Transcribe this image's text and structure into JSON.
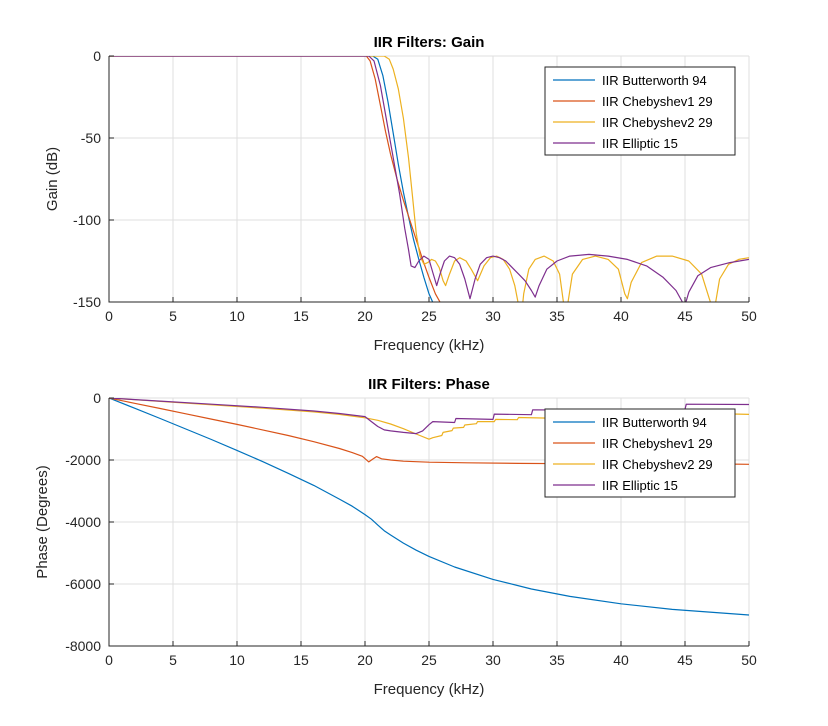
{
  "chart_data": [
    {
      "type": "line",
      "title": "IIR Filters: Gain",
      "xlabel": "Frequency (kHz)",
      "ylabel": "Gain (dB)",
      "xlim": [
        0,
        50
      ],
      "ylim": [
        -150,
        0
      ],
      "xticks": [
        0,
        5,
        10,
        15,
        20,
        25,
        30,
        35,
        40,
        45,
        50
      ],
      "yticks": [
        0,
        -50,
        -100,
        -150
      ],
      "grid": true,
      "legend_position": "top-right",
      "series": [
        {
          "name": "IIR Butterworth 94",
          "color": "#0072bd",
          "x": [
            0,
            20.6,
            21.0,
            21.4,
            21.8,
            22.2,
            22.6,
            23.0,
            23.4,
            23.8,
            24.2,
            24.6,
            25.0,
            25.4
          ],
          "y": [
            0,
            0,
            -2,
            -12,
            -28,
            -47,
            -66,
            -83,
            -98,
            -112,
            -124,
            -135,
            -145,
            -152
          ]
        },
        {
          "name": "IIR Chebyshev1 29",
          "color": "#d95319",
          "x": [
            0,
            20.1,
            20.4,
            20.8,
            21.2,
            21.6,
            22.0,
            22.5,
            23.0,
            23.5,
            24.0,
            24.5,
            25.0,
            25.5,
            26.0
          ],
          "y": [
            0,
            0,
            -3,
            -14,
            -30,
            -46,
            -60,
            -75,
            -88,
            -100,
            -112,
            -124,
            -135,
            -145,
            -152
          ]
        },
        {
          "name": "IIR Chebyshev2 29",
          "color": "#edb120",
          "x": [
            0,
            21.5,
            21.9,
            22.2,
            22.6,
            23.0,
            23.4,
            23.7,
            24.0,
            24.3,
            24.6,
            24.9,
            25.2,
            25.5,
            25.8,
            26.1,
            26.3,
            26.6,
            27.0,
            27.4,
            27.9,
            28.3,
            28.8,
            29.3,
            29.8,
            30.3,
            30.8,
            31.3,
            31.7,
            32.0,
            32.2,
            32.4,
            32.8,
            33.3,
            34.0,
            34.7,
            35.2,
            35.5,
            35.7,
            36.2,
            37.0,
            38.0,
            39.0,
            39.8,
            40.3,
            40.5,
            40.8,
            41.6,
            42.8,
            44.0,
            45.3,
            46.3,
            46.9,
            47.2,
            47.4,
            47.7,
            48.4,
            49.2,
            50.0
          ],
          "y": [
            0,
            0,
            -2,
            -8,
            -20,
            -38,
            -62,
            -85,
            -108,
            -122,
            -127,
            -126,
            -124,
            -125,
            -129,
            -137,
            -140,
            -133,
            -125,
            -123,
            -125,
            -130,
            -137,
            -128,
            -123,
            -122,
            -124,
            -130,
            -140,
            -152,
            -160,
            -145,
            -130,
            -124,
            -122,
            -125,
            -133,
            -150,
            -158,
            -133,
            -124,
            -122,
            -124,
            -130,
            -145,
            -148,
            -138,
            -126,
            -122,
            -122,
            -125,
            -133,
            -148,
            -155,
            -150,
            -136,
            -127,
            -124,
            -123
          ]
        },
        {
          "name": "IIR Elliptic 15",
          "color": "#7e2f8e",
          "x": [
            0,
            20.3,
            20.7,
            21.2,
            21.7,
            22.2,
            22.7,
            23.1,
            23.4,
            23.6,
            23.9,
            24.2,
            24.6,
            25.0,
            25.3,
            25.6,
            25.9,
            26.2,
            26.6,
            27.0,
            27.4,
            27.8,
            28.2,
            28.6,
            29.0,
            29.5,
            30.0,
            30.5,
            31.0,
            31.5,
            32.0,
            32.5,
            33.0,
            33.3,
            33.6,
            34.2,
            35.0,
            36.0,
            37.5,
            39.0,
            40.5,
            42.0,
            43.3,
            44.3,
            44.8,
            45.0,
            45.3,
            46.0,
            47.0,
            48.5,
            50.0
          ],
          "y": [
            0,
            0,
            -3,
            -18,
            -40,
            -62,
            -84,
            -105,
            -118,
            -128,
            -129,
            -125,
            -122,
            -124,
            -132,
            -140,
            -132,
            -125,
            -122,
            -123,
            -127,
            -136,
            -148,
            -136,
            -127,
            -123,
            -122,
            -123,
            -125,
            -129,
            -133,
            -137,
            -143,
            -147,
            -140,
            -130,
            -125,
            -122,
            -121,
            -122,
            -124,
            -128,
            -135,
            -143,
            -150,
            -152,
            -144,
            -134,
            -129,
            -126,
            -124
          ]
        }
      ]
    },
    {
      "type": "line",
      "title": "IIR Filters: Phase",
      "xlabel": "Frequency (kHz)",
      "ylabel": "Phase (Degrees)",
      "xlim": [
        0,
        50
      ],
      "ylim": [
        -8000,
        0
      ],
      "xticks": [
        0,
        5,
        10,
        15,
        20,
        25,
        30,
        35,
        40,
        45,
        50
      ],
      "yticks": [
        0,
        -2000,
        -4000,
        -6000,
        -8000
      ],
      "grid": true,
      "legend_position": "top-right",
      "series": [
        {
          "name": "IIR Butterworth 94",
          "color": "#0072bd",
          "x": [
            0,
            2,
            4,
            6,
            8,
            10,
            12,
            14,
            16,
            18,
            19,
            20,
            20.5,
            21,
            21.5,
            22,
            23,
            24,
            25,
            27,
            30,
            33,
            36,
            40,
            44,
            48,
            50
          ],
          "y": [
            0,
            -330,
            -660,
            -1000,
            -1340,
            -1690,
            -2050,
            -2430,
            -2820,
            -3260,
            -3490,
            -3760,
            -3910,
            -4100,
            -4280,
            -4420,
            -4680,
            -4910,
            -5110,
            -5450,
            -5850,
            -6160,
            -6400,
            -6640,
            -6820,
            -6940,
            -7000
          ]
        },
        {
          "name": "IIR Chebyshev1 29",
          "color": "#d95319",
          "x": [
            0,
            2,
            4,
            6,
            8,
            10,
            12,
            14,
            16,
            18,
            19,
            19.8,
            20.3,
            20.6,
            20.9,
            21.3,
            22,
            23,
            25,
            28,
            32,
            36,
            40,
            44,
            48,
            50
          ],
          "y": [
            0,
            -170,
            -340,
            -510,
            -680,
            -850,
            -1030,
            -1210,
            -1410,
            -1630,
            -1760,
            -1880,
            -2060,
            -1970,
            -1890,
            -1960,
            -2000,
            -2040,
            -2070,
            -2090,
            -2110,
            -2120,
            -2120,
            -2130,
            -2130,
            -2140
          ]
        },
        {
          "name": "IIR Chebyshev2 29",
          "color": "#edb120",
          "x": [
            0,
            4,
            8,
            12,
            16,
            18,
            20,
            21,
            22,
            23,
            24,
            25,
            25.3,
            26.0,
            26.1,
            26.8,
            26.9,
            27.7,
            27.8,
            28.7,
            28.8,
            30.1,
            30.2,
            31.9,
            32.0,
            34.3,
            34.4,
            37.0,
            37.1,
            40.2,
            40.3,
            44.0,
            44.1,
            47.0,
            47.1,
            50.0
          ],
          "y": [
            0,
            -110,
            -220,
            -330,
            -450,
            -530,
            -640,
            -720,
            -840,
            -990,
            -1160,
            -1330,
            -1280,
            -1210,
            -1110,
            -1050,
            -970,
            -950,
            -870,
            -830,
            -760,
            -760,
            -690,
            -700,
            -630,
            -650,
            -580,
            -610,
            -540,
            -590,
            -520,
            -580,
            -510,
            -560,
            -500,
            -530
          ]
        },
        {
          "name": "IIR Elliptic 15",
          "color": "#7e2f8e",
          "x": [
            0,
            4,
            8,
            12,
            16,
            18,
            20,
            20.5,
            21,
            21.5,
            22,
            23,
            24,
            24.5,
            25,
            25.3,
            27,
            27.1,
            30,
            30.1,
            33,
            33.1,
            37,
            37.1,
            45,
            45.1,
            50
          ],
          "y": [
            0,
            -100,
            -200,
            -300,
            -420,
            -500,
            -600,
            -760,
            -920,
            -1030,
            -1060,
            -1110,
            -1150,
            -1060,
            -860,
            -760,
            -790,
            -660,
            -690,
            -520,
            -540,
            -380,
            -390,
            -360,
            -360,
            -200,
            -210
          ]
        }
      ]
    }
  ]
}
